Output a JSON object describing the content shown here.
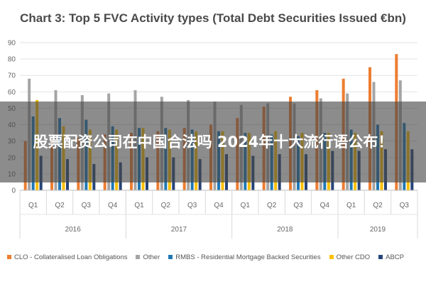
{
  "chart_data": {
    "type": "bar",
    "title": "Chart 3: Top 5 FVC Activity types (Total Debt Securities Issued €bn)",
    "xlabel": "",
    "ylabel": "",
    "ylim": [
      0,
      90
    ],
    "yticks": [
      "0",
      "10",
      "20",
      "30",
      "40",
      "50",
      "60",
      "70",
      "80",
      "90"
    ],
    "grid": true,
    "legend_position": "bottom",
    "categories": [
      "Q1",
      "Q2",
      "Q3",
      "Q4",
      "Q1",
      "Q2",
      "Q3",
      "Q4",
      "Q1",
      "Q2",
      "Q3",
      "Q4",
      "Q1",
      "Q2",
      "Q3"
    ],
    "groups": [
      {
        "label": "2016",
        "count": 4
      },
      {
        "label": "2017",
        "count": 4
      },
      {
        "label": "2018",
        "count": 4
      },
      {
        "label": "2019",
        "count": 3
      }
    ],
    "series": [
      {
        "name": "CLO - Collateralised Loan Obligations",
        "color": "#ed7d31",
        "values": [
          30,
          31,
          32,
          34,
          35,
          36,
          38,
          40,
          44,
          51,
          57,
          61,
          68,
          75,
          83
        ]
      },
      {
        "name": "Other",
        "color": "#a5a5a5",
        "values": [
          68,
          61,
          58,
          59,
          61,
          57,
          55,
          54,
          52,
          53,
          53,
          56,
          59,
          66,
          67
        ]
      },
      {
        "name": "RMBS - Residential Mortgage Backed Securities",
        "color": "#1f78b4",
        "values": [
          45,
          44,
          43,
          39,
          38,
          38,
          37,
          36,
          35,
          34,
          33,
          35,
          37,
          40,
          41
        ]
      },
      {
        "name": "Other CDO",
        "color": "#ffc000",
        "values": [
          55,
          39,
          37,
          37,
          38,
          37,
          36,
          36,
          35,
          36,
          35,
          35,
          35,
          36,
          36
        ]
      },
      {
        "name": "ABCP",
        "color": "#264478",
        "values": [
          21,
          19,
          16,
          17,
          20,
          20,
          19,
          22,
          21,
          22,
          22,
          24,
          24,
          25,
          25
        ]
      }
    ]
  },
  "overlay": {
    "text": "股票配资公司在中国合法吗 2024年十大流行语公布！"
  }
}
